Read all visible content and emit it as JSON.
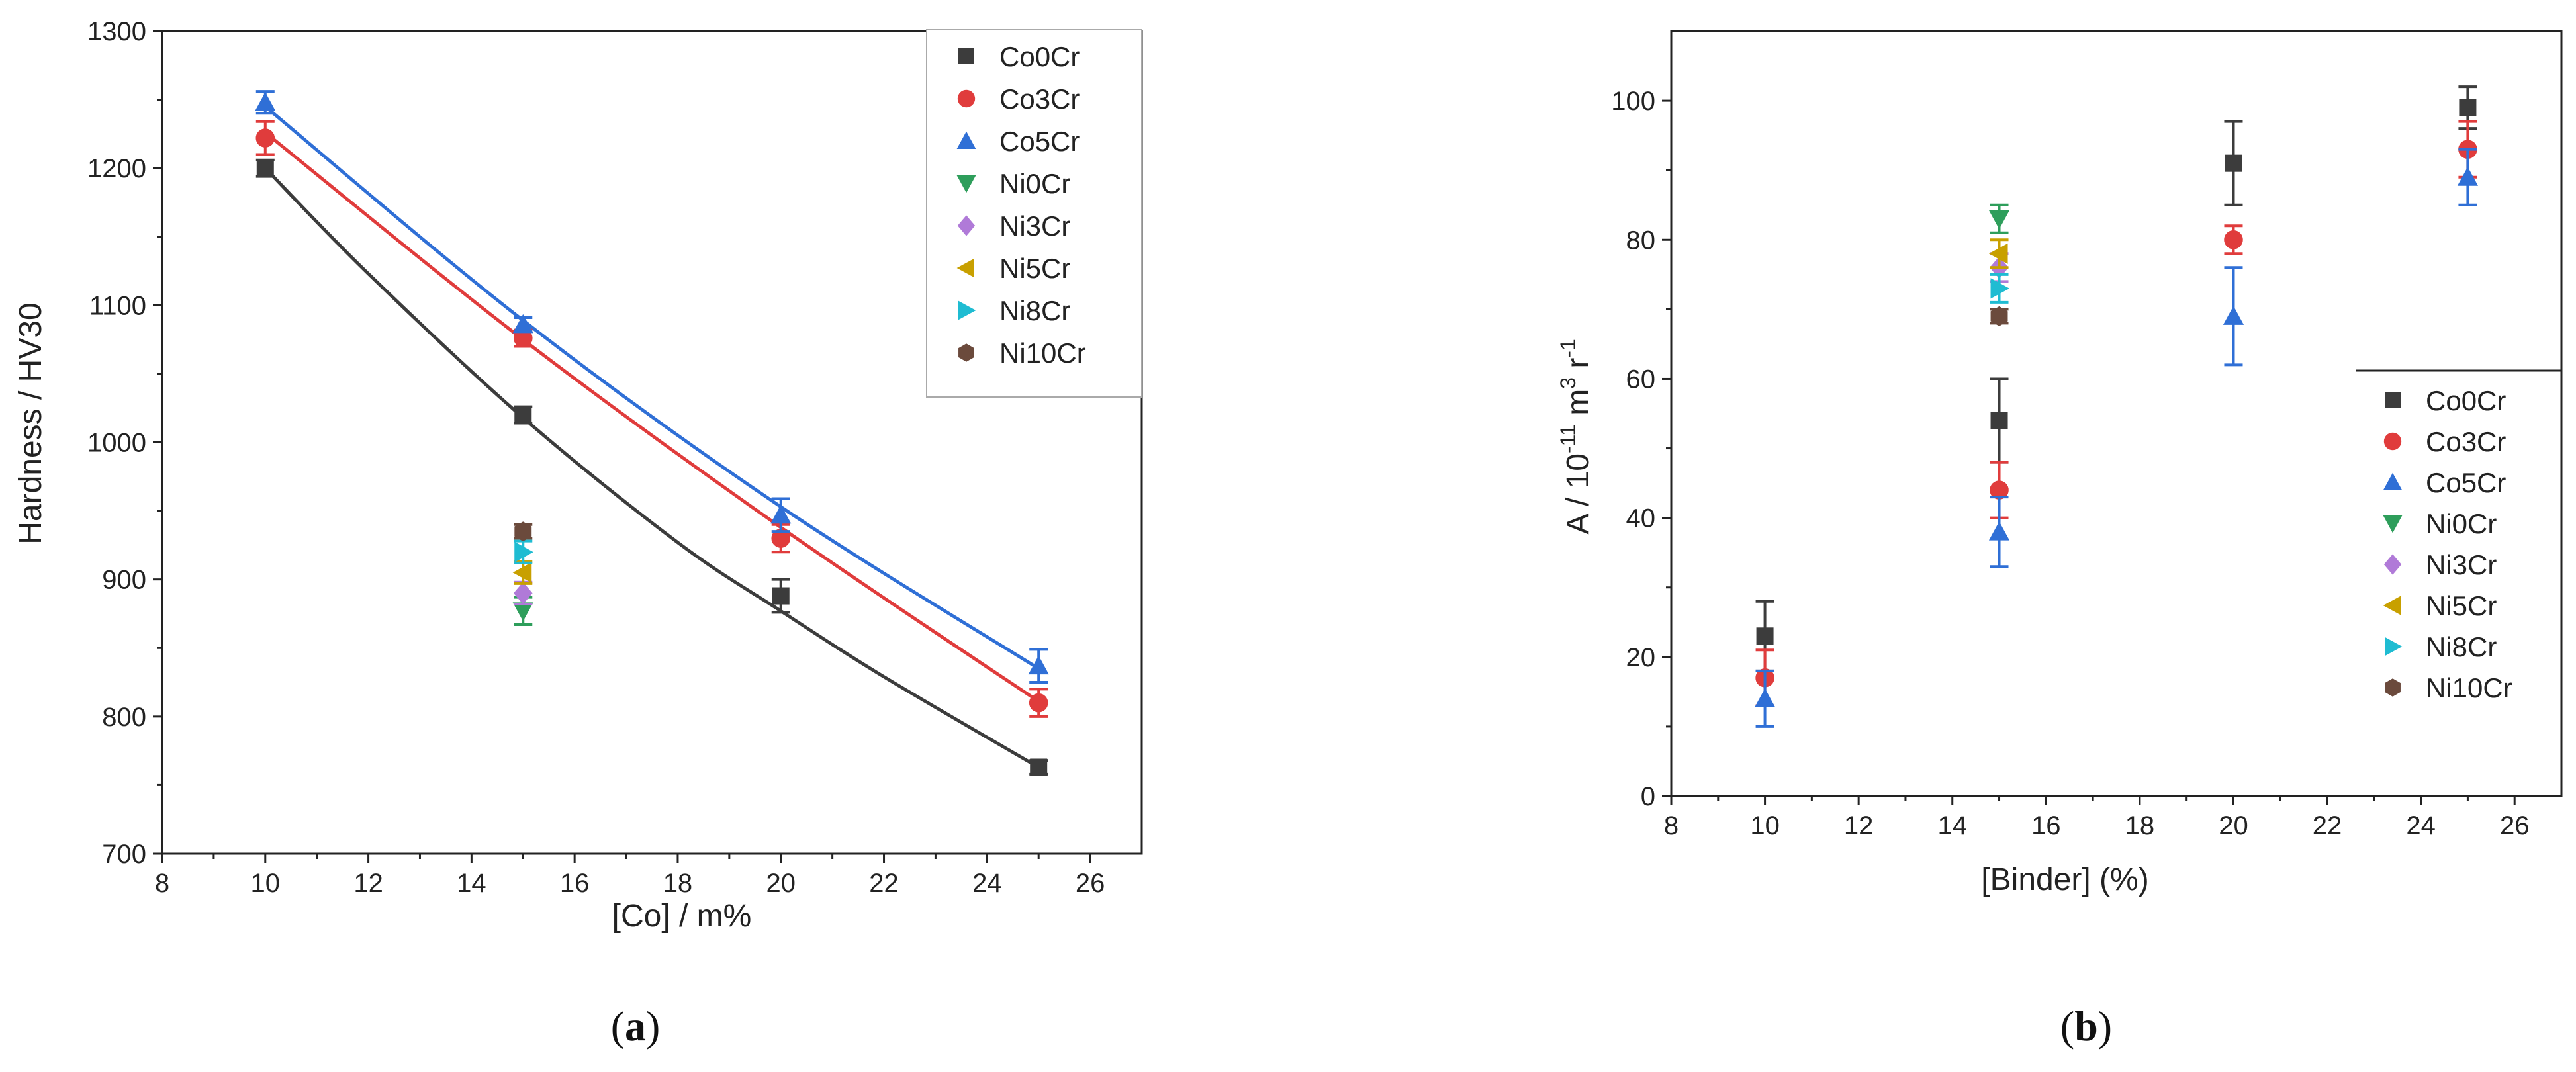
{
  "chart_data": [
    {
      "panel_label_open": "(",
      "panel_label_letter": "a",
      "panel_label_close": ")",
      "type": "scatter",
      "title": "",
      "xlabel": "[Co] / m%",
      "ylabel": "Hardness / HV30",
      "xlim": [
        8,
        27
      ],
      "ylim": [
        700,
        1300
      ],
      "xticks": [
        8,
        10,
        12,
        14,
        16,
        18,
        20,
        22,
        24,
        26
      ],
      "yticks": [
        700,
        800,
        900,
        1000,
        1100,
        1200,
        1300
      ],
      "legend_position": "top-right",
      "legend_box": true,
      "series": [
        {
          "name": "Co0Cr",
          "color": "#3c3c3c",
          "marker": "square",
          "x": [
            10,
            15,
            20,
            25
          ],
          "y": [
            1200,
            1020,
            888,
            763
          ],
          "err": [
            6,
            6,
            12,
            5
          ],
          "fit": [
            [
              10,
              1200
            ],
            [
              12,
              1123
            ],
            [
              15,
              1018
            ],
            [
              18,
              927
            ],
            [
              20,
              877
            ],
            [
              22,
              829
            ],
            [
              25,
              763
            ]
          ]
        },
        {
          "name": "Co3Cr",
          "color": "#e03c3c",
          "marker": "circle",
          "x": [
            10,
            15,
            20,
            25
          ],
          "y": [
            1222,
            1076,
            930,
            810
          ],
          "err": [
            12,
            6,
            10,
            10
          ],
          "fit": [
            [
              10,
              1226
            ],
            [
              15,
              1075
            ],
            [
              20,
              938
            ],
            [
              25,
              811
            ]
          ]
        },
        {
          "name": "Co5Cr",
          "color": "#2f6fd6",
          "marker": "triangle-up",
          "x": [
            10,
            15,
            20,
            25
          ],
          "y": [
            1248,
            1086,
            947,
            837
          ],
          "err": [
            8,
            5,
            12,
            12
          ],
          "fit": [
            [
              10,
              1245
            ],
            [
              15,
              1089
            ],
            [
              20,
              953
            ],
            [
              25,
              835
            ]
          ]
        },
        {
          "name": "Ni0Cr",
          "color": "#2e9e5b",
          "marker": "triangle-down",
          "x": [
            15
          ],
          "y": [
            877
          ],
          "err": [
            10
          ]
        },
        {
          "name": "Ni3Cr",
          "color": "#b07ad8",
          "marker": "diamond",
          "x": [
            15
          ],
          "y": [
            890
          ],
          "err": [
            8
          ]
        },
        {
          "name": "Ni5Cr",
          "color": "#c8a000",
          "marker": "triangle-left",
          "x": [
            15
          ],
          "y": [
            905
          ],
          "err": [
            8
          ]
        },
        {
          "name": "Ni8Cr",
          "color": "#1fbcd2",
          "marker": "triangle-right",
          "x": [
            15
          ],
          "y": [
            920
          ],
          "err": [
            8
          ]
        },
        {
          "name": "Ni10Cr",
          "color": "#6b4a3c",
          "marker": "hexagon",
          "x": [
            15
          ],
          "y": [
            935
          ],
          "err": [
            5
          ]
        }
      ]
    },
    {
      "panel_label_open": "(",
      "panel_label_letter": "b",
      "panel_label_close": ")",
      "type": "scatter",
      "title": "",
      "xlabel": "[Binder] (%)",
      "ylabel_main": "A / 10",
      "ylabel_exp1": "-11",
      "ylabel_mid": " m",
      "ylabel_exp2": "3",
      "ylabel_end": " r",
      "ylabel_exp3": "-1",
      "xlim": [
        8,
        27
      ],
      "ylim": [
        0,
        110
      ],
      "xticks": [
        8,
        10,
        12,
        14,
        16,
        18,
        20,
        22,
        24,
        26
      ],
      "yticks": [
        0,
        20,
        40,
        60,
        80,
        100
      ],
      "legend_position": "right",
      "legend_box": false,
      "series": [
        {
          "name": "Co0Cr",
          "color": "#3c3c3c",
          "marker": "square",
          "x": [
            10,
            15,
            20,
            25
          ],
          "y": [
            23,
            54,
            91,
            99
          ],
          "err": [
            5,
            6,
            6,
            3
          ]
        },
        {
          "name": "Co3Cr",
          "color": "#e03c3c",
          "marker": "circle",
          "x": [
            10,
            15,
            20,
            25
          ],
          "y": [
            17,
            44,
            80,
            93
          ],
          "err": [
            4,
            4,
            2,
            4
          ]
        },
        {
          "name": "Co5Cr",
          "color": "#2f6fd6",
          "marker": "triangle-up",
          "x": [
            10,
            15,
            20,
            25
          ],
          "y": [
            14,
            38,
            69,
            89
          ],
          "err": [
            4,
            5,
            7,
            4
          ]
        },
        {
          "name": "Ni0Cr",
          "color": "#2e9e5b",
          "marker": "triangle-down",
          "x": [
            15
          ],
          "y": [
            83
          ],
          "err": [
            2
          ]
        },
        {
          "name": "Ni3Cr",
          "color": "#b07ad8",
          "marker": "diamond",
          "x": [
            15
          ],
          "y": [
            76
          ],
          "err": [
            2
          ]
        },
        {
          "name": "Ni5Cr",
          "color": "#c8a000",
          "marker": "triangle-left",
          "x": [
            15
          ],
          "y": [
            78
          ],
          "err": [
            2
          ]
        },
        {
          "name": "Ni8Cr",
          "color": "#1fbcd2",
          "marker": "triangle-right",
          "x": [
            15
          ],
          "y": [
            73
          ],
          "err": [
            2
          ]
        },
        {
          "name": "Ni10Cr",
          "color": "#6b4a3c",
          "marker": "hexagon",
          "x": [
            15
          ],
          "y": [
            69
          ],
          "err": [
            1
          ]
        }
      ]
    }
  ]
}
